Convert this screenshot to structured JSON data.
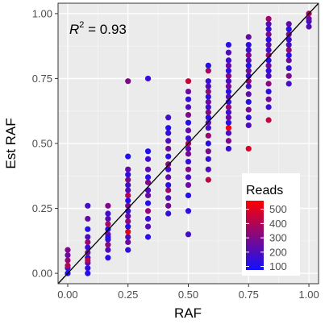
{
  "chart_data": {
    "type": "scatter",
    "xlabel": "RAF",
    "ylabel": "Est RAF",
    "xlim": [
      -0.04,
      1.04
    ],
    "ylim": [
      -0.04,
      1.04
    ],
    "x_ticks": [
      "0.00",
      "0.25",
      "0.50",
      "0.75",
      "1.00"
    ],
    "y_ticks": [
      "0.00",
      "0.25",
      "0.50",
      "0.75",
      "1.00"
    ],
    "grid": true,
    "reference_line": {
      "type": "identity",
      "slope": 1,
      "intercept": 0
    },
    "annotation": {
      "prefix": "R",
      "superscript": "2",
      "text": " = 0.93"
    },
    "legend": {
      "title": "Reads",
      "placement": "bottom-right",
      "type": "colorbar",
      "labels": [
        "500",
        "400",
        "300",
        "200",
        "100"
      ],
      "min": 75,
      "max": 560,
      "color_low": "#1010ff",
      "color_high": "#ff0000"
    },
    "point_columns": [
      "x",
      "y",
      "reads"
    ],
    "points": [
      [
        0.0,
        0.02,
        150
      ],
      [
        0.0,
        0.0,
        120
      ],
      [
        0.0,
        0.05,
        330
      ],
      [
        0.0,
        0.07,
        260
      ],
      [
        0.0,
        0.09,
        300
      ],
      [
        0.0,
        0.03,
        400
      ],
      [
        0.083,
        0.0,
        110
      ],
      [
        0.083,
        0.02,
        140
      ],
      [
        0.083,
        0.04,
        220
      ],
      [
        0.083,
        0.06,
        130
      ],
      [
        0.083,
        0.08,
        280
      ],
      [
        0.083,
        0.1,
        160
      ],
      [
        0.083,
        0.12,
        350
      ],
      [
        0.083,
        0.14,
        200
      ],
      [
        0.083,
        0.17,
        120
      ],
      [
        0.083,
        0.21,
        250
      ],
      [
        0.083,
        0.26,
        180
      ],
      [
        0.083,
        0.05,
        420
      ],
      [
        0.167,
        0.06,
        130
      ],
      [
        0.167,
        0.09,
        200
      ],
      [
        0.167,
        0.11,
        320
      ],
      [
        0.167,
        0.13,
        150
      ],
      [
        0.167,
        0.15,
        260
      ],
      [
        0.167,
        0.17,
        110
      ],
      [
        0.167,
        0.19,
        380
      ],
      [
        0.167,
        0.21,
        220
      ],
      [
        0.167,
        0.23,
        170
      ],
      [
        0.167,
        0.26,
        300
      ],
      [
        0.167,
        0.14,
        140
      ],
      [
        0.25,
        0.09,
        140
      ],
      [
        0.25,
        0.12,
        260
      ],
      [
        0.25,
        0.14,
        190
      ],
      [
        0.25,
        0.16,
        520
      ],
      [
        0.25,
        0.18,
        120
      ],
      [
        0.25,
        0.2,
        330
      ],
      [
        0.25,
        0.22,
        250
      ],
      [
        0.25,
        0.24,
        160
      ],
      [
        0.25,
        0.26,
        290
      ],
      [
        0.25,
        0.28,
        110
      ],
      [
        0.25,
        0.3,
        400
      ],
      [
        0.25,
        0.32,
        210
      ],
      [
        0.25,
        0.34,
        170
      ],
      [
        0.25,
        0.36,
        300
      ],
      [
        0.25,
        0.38,
        130
      ],
      [
        0.25,
        0.4,
        240
      ],
      [
        0.25,
        0.45,
        110
      ],
      [
        0.25,
        0.74,
        300
      ],
      [
        0.333,
        0.14,
        130
      ],
      [
        0.333,
        0.18,
        220
      ],
      [
        0.333,
        0.21,
        160
      ],
      [
        0.333,
        0.24,
        340
      ],
      [
        0.333,
        0.27,
        120
      ],
      [
        0.333,
        0.3,
        260
      ],
      [
        0.333,
        0.32,
        190
      ],
      [
        0.333,
        0.35,
        300
      ],
      [
        0.333,
        0.37,
        140
      ],
      [
        0.333,
        0.4,
        230
      ],
      [
        0.333,
        0.44,
        170
      ],
      [
        0.333,
        0.47,
        110
      ],
      [
        0.333,
        0.75,
        160
      ],
      [
        0.417,
        0.23,
        150
      ],
      [
        0.417,
        0.26,
        280
      ],
      [
        0.417,
        0.29,
        200
      ],
      [
        0.417,
        0.32,
        360
      ],
      [
        0.417,
        0.34,
        130
      ],
      [
        0.417,
        0.37,
        250
      ],
      [
        0.417,
        0.4,
        180
      ],
      [
        0.417,
        0.42,
        320
      ],
      [
        0.417,
        0.45,
        140
      ],
      [
        0.417,
        0.48,
        270
      ],
      [
        0.417,
        0.51,
        210
      ],
      [
        0.417,
        0.54,
        160
      ],
      [
        0.417,
        0.56,
        120
      ],
      [
        0.417,
        0.6,
        180
      ],
      [
        0.5,
        0.15,
        180
      ],
      [
        0.5,
        0.24,
        140
      ],
      [
        0.5,
        0.3,
        120
      ],
      [
        0.5,
        0.34,
        260
      ],
      [
        0.5,
        0.37,
        190
      ],
      [
        0.5,
        0.4,
        310
      ],
      [
        0.5,
        0.43,
        150
      ],
      [
        0.5,
        0.46,
        280
      ],
      [
        0.5,
        0.48,
        220
      ],
      [
        0.5,
        0.5,
        380
      ],
      [
        0.5,
        0.52,
        170
      ],
      [
        0.5,
        0.55,
        240
      ],
      [
        0.5,
        0.58,
        130
      ],
      [
        0.5,
        0.61,
        300
      ],
      [
        0.5,
        0.64,
        200
      ],
      [
        0.5,
        0.67,
        150
      ],
      [
        0.5,
        0.7,
        260
      ],
      [
        0.5,
        0.74,
        450
      ],
      [
        0.583,
        0.36,
        420
      ],
      [
        0.583,
        0.4,
        200
      ],
      [
        0.583,
        0.44,
        150
      ],
      [
        0.583,
        0.47,
        290
      ],
      [
        0.583,
        0.5,
        130
      ],
      [
        0.583,
        0.53,
        350
      ],
      [
        0.583,
        0.56,
        180
      ],
      [
        0.583,
        0.58,
        240
      ],
      [
        0.583,
        0.6,
        120
      ],
      [
        0.583,
        0.62,
        310
      ],
      [
        0.583,
        0.64,
        170
      ],
      [
        0.583,
        0.66,
        260
      ],
      [
        0.583,
        0.68,
        140
      ],
      [
        0.583,
        0.7,
        330
      ],
      [
        0.583,
        0.72,
        200
      ],
      [
        0.583,
        0.74,
        160
      ],
      [
        0.583,
        0.78,
        380
      ],
      [
        0.583,
        0.8,
        120
      ],
      [
        0.667,
        0.48,
        160
      ],
      [
        0.667,
        0.51,
        300
      ],
      [
        0.667,
        0.54,
        200
      ],
      [
        0.667,
        0.56,
        540
      ],
      [
        0.667,
        0.58,
        130
      ],
      [
        0.667,
        0.6,
        260
      ],
      [
        0.667,
        0.62,
        180
      ],
      [
        0.667,
        0.64,
        340
      ],
      [
        0.667,
        0.66,
        150
      ],
      [
        0.667,
        0.68,
        230
      ],
      [
        0.667,
        0.7,
        120
      ],
      [
        0.667,
        0.72,
        280
      ],
      [
        0.667,
        0.74,
        190
      ],
      [
        0.667,
        0.76,
        310
      ],
      [
        0.667,
        0.78,
        140
      ],
      [
        0.667,
        0.8,
        250
      ],
      [
        0.667,
        0.82,
        170
      ],
      [
        0.667,
        0.85,
        210
      ],
      [
        0.667,
        0.88,
        130
      ],
      [
        0.75,
        0.48,
        480
      ],
      [
        0.75,
        0.57,
        200
      ],
      [
        0.75,
        0.6,
        150
      ],
      [
        0.75,
        0.63,
        290
      ],
      [
        0.75,
        0.66,
        130
      ],
      [
        0.75,
        0.69,
        240
      ],
      [
        0.75,
        0.72,
        180
      ],
      [
        0.75,
        0.74,
        330
      ],
      [
        0.75,
        0.76,
        160
      ],
      [
        0.75,
        0.78,
        270
      ],
      [
        0.75,
        0.8,
        120
      ],
      [
        0.75,
        0.82,
        220
      ],
      [
        0.75,
        0.84,
        300
      ],
      [
        0.75,
        0.86,
        170
      ],
      [
        0.75,
        0.88,
        140
      ],
      [
        0.75,
        0.91,
        250
      ],
      [
        0.833,
        0.59,
        430
      ],
      [
        0.833,
        0.64,
        170
      ],
      [
        0.833,
        0.67,
        280
      ],
      [
        0.833,
        0.7,
        140
      ],
      [
        0.833,
        0.73,
        320
      ],
      [
        0.833,
        0.76,
        200
      ],
      [
        0.833,
        0.78,
        150
      ],
      [
        0.833,
        0.8,
        260
      ],
      [
        0.833,
        0.82,
        120
      ],
      [
        0.833,
        0.84,
        340
      ],
      [
        0.833,
        0.86,
        180
      ],
      [
        0.833,
        0.88,
        230
      ],
      [
        0.833,
        0.9,
        130
      ],
      [
        0.833,
        0.92,
        290
      ],
      [
        0.833,
        0.94,
        160
      ],
      [
        0.833,
        0.96,
        210
      ],
      [
        0.833,
        0.98,
        360
      ],
      [
        0.917,
        0.73,
        180
      ],
      [
        0.917,
        0.76,
        300
      ],
      [
        0.917,
        0.79,
        150
      ],
      [
        0.917,
        0.82,
        250
      ],
      [
        0.917,
        0.84,
        130
      ],
      [
        0.917,
        0.86,
        340
      ],
      [
        0.917,
        0.88,
        200
      ],
      [
        0.917,
        0.9,
        160
      ],
      [
        0.917,
        0.92,
        280
      ],
      [
        0.917,
        0.94,
        120
      ],
      [
        0.917,
        0.96,
        230
      ],
      [
        1.0,
        0.95,
        220
      ],
      [
        1.0,
        0.97,
        150
      ],
      [
        1.0,
        1.0,
        380
      ],
      [
        1.0,
        0.98,
        260
      ]
    ]
  }
}
